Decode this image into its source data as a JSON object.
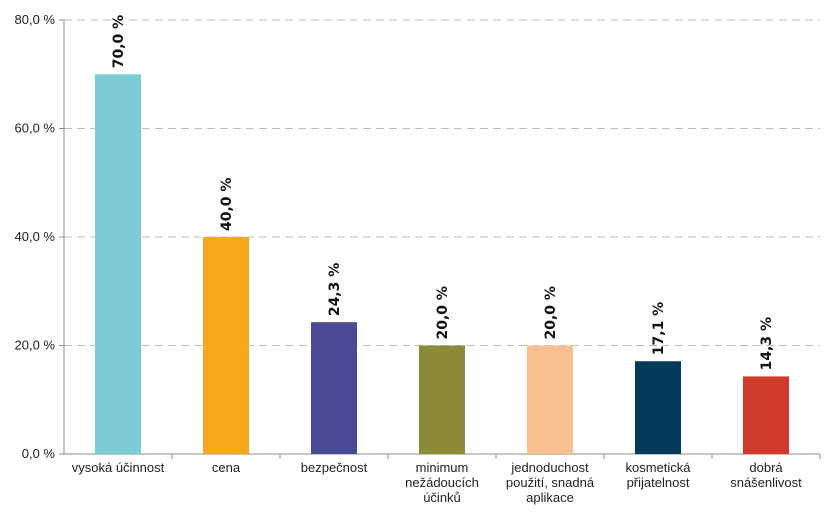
{
  "chart_data": {
    "type": "bar",
    "title": "",
    "xlabel": "",
    "ylabel": "",
    "ylim": [
      0,
      80
    ],
    "yticks": [
      0,
      20,
      40,
      60,
      80
    ],
    "ytick_labels": [
      "0,0 %",
      "20,0 %",
      "40,0 %",
      "60,0 %",
      "80,0 %"
    ],
    "grid": "horizontal dashed",
    "categories": [
      [
        "vysoká účinnost"
      ],
      [
        "cena"
      ],
      [
        "bezpečnost"
      ],
      [
        "minimum",
        "nežádoucích",
        "účinků"
      ],
      [
        "jednoduchost",
        "použití, snadná",
        "aplikace"
      ],
      [
        "kosmetická",
        "přijatelnost"
      ],
      [
        "dobrá",
        "snášenlivost"
      ]
    ],
    "values": [
      70.0,
      40.0,
      24.3,
      20.0,
      20.0,
      17.1,
      14.3
    ],
    "data_labels": [
      "70,0 %",
      "40,0 %",
      "24,3 %",
      "20,0 %",
      "20,0 %",
      "17,1 %",
      "14,3 %"
    ],
    "colors": [
      "#7ccbd6",
      "#f6a81c",
      "#4b4a95",
      "#8a8b34",
      "#f8bf90",
      "#033a5c",
      "#d03a2b"
    ]
  }
}
